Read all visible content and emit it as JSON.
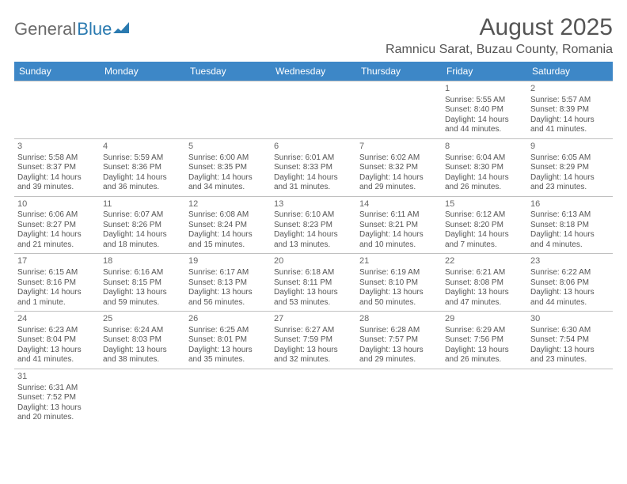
{
  "logo": {
    "general": "General",
    "blue": "Blue"
  },
  "title": "August 2025",
  "location": "Ramnicu Sarat, Buzau County, Romania",
  "day_headers": [
    "Sunday",
    "Monday",
    "Tuesday",
    "Wednesday",
    "Thursday",
    "Friday",
    "Saturday"
  ],
  "colors": {
    "header_bg": "#3d87c7",
    "header_text": "#ffffff",
    "text": "#555555",
    "border": "#c0c0c0",
    "logo_blue": "#2a7ab0"
  },
  "weeks": [
    [
      null,
      null,
      null,
      null,
      null,
      {
        "n": "1",
        "sr": "5:55 AM",
        "ss": "8:40 PM",
        "dl": "14 hours and 44 minutes."
      },
      {
        "n": "2",
        "sr": "5:57 AM",
        "ss": "8:39 PM",
        "dl": "14 hours and 41 minutes."
      }
    ],
    [
      {
        "n": "3",
        "sr": "5:58 AM",
        "ss": "8:37 PM",
        "dl": "14 hours and 39 minutes."
      },
      {
        "n": "4",
        "sr": "5:59 AM",
        "ss": "8:36 PM",
        "dl": "14 hours and 36 minutes."
      },
      {
        "n": "5",
        "sr": "6:00 AM",
        "ss": "8:35 PM",
        "dl": "14 hours and 34 minutes."
      },
      {
        "n": "6",
        "sr": "6:01 AM",
        "ss": "8:33 PM",
        "dl": "14 hours and 31 minutes."
      },
      {
        "n": "7",
        "sr": "6:02 AM",
        "ss": "8:32 PM",
        "dl": "14 hours and 29 minutes."
      },
      {
        "n": "8",
        "sr": "6:04 AM",
        "ss": "8:30 PM",
        "dl": "14 hours and 26 minutes."
      },
      {
        "n": "9",
        "sr": "6:05 AM",
        "ss": "8:29 PM",
        "dl": "14 hours and 23 minutes."
      }
    ],
    [
      {
        "n": "10",
        "sr": "6:06 AM",
        "ss": "8:27 PM",
        "dl": "14 hours and 21 minutes."
      },
      {
        "n": "11",
        "sr": "6:07 AM",
        "ss": "8:26 PM",
        "dl": "14 hours and 18 minutes."
      },
      {
        "n": "12",
        "sr": "6:08 AM",
        "ss": "8:24 PM",
        "dl": "14 hours and 15 minutes."
      },
      {
        "n": "13",
        "sr": "6:10 AM",
        "ss": "8:23 PM",
        "dl": "14 hours and 13 minutes."
      },
      {
        "n": "14",
        "sr": "6:11 AM",
        "ss": "8:21 PM",
        "dl": "14 hours and 10 minutes."
      },
      {
        "n": "15",
        "sr": "6:12 AM",
        "ss": "8:20 PM",
        "dl": "14 hours and 7 minutes."
      },
      {
        "n": "16",
        "sr": "6:13 AM",
        "ss": "8:18 PM",
        "dl": "14 hours and 4 minutes."
      }
    ],
    [
      {
        "n": "17",
        "sr": "6:15 AM",
        "ss": "8:16 PM",
        "dl": "14 hours and 1 minute."
      },
      {
        "n": "18",
        "sr": "6:16 AM",
        "ss": "8:15 PM",
        "dl": "13 hours and 59 minutes."
      },
      {
        "n": "19",
        "sr": "6:17 AM",
        "ss": "8:13 PM",
        "dl": "13 hours and 56 minutes."
      },
      {
        "n": "20",
        "sr": "6:18 AM",
        "ss": "8:11 PM",
        "dl": "13 hours and 53 minutes."
      },
      {
        "n": "21",
        "sr": "6:19 AM",
        "ss": "8:10 PM",
        "dl": "13 hours and 50 minutes."
      },
      {
        "n": "22",
        "sr": "6:21 AM",
        "ss": "8:08 PM",
        "dl": "13 hours and 47 minutes."
      },
      {
        "n": "23",
        "sr": "6:22 AM",
        "ss": "8:06 PM",
        "dl": "13 hours and 44 minutes."
      }
    ],
    [
      {
        "n": "24",
        "sr": "6:23 AM",
        "ss": "8:04 PM",
        "dl": "13 hours and 41 minutes."
      },
      {
        "n": "25",
        "sr": "6:24 AM",
        "ss": "8:03 PM",
        "dl": "13 hours and 38 minutes."
      },
      {
        "n": "26",
        "sr": "6:25 AM",
        "ss": "8:01 PM",
        "dl": "13 hours and 35 minutes."
      },
      {
        "n": "27",
        "sr": "6:27 AM",
        "ss": "7:59 PM",
        "dl": "13 hours and 32 minutes."
      },
      {
        "n": "28",
        "sr": "6:28 AM",
        "ss": "7:57 PM",
        "dl": "13 hours and 29 minutes."
      },
      {
        "n": "29",
        "sr": "6:29 AM",
        "ss": "7:56 PM",
        "dl": "13 hours and 26 minutes."
      },
      {
        "n": "30",
        "sr": "6:30 AM",
        "ss": "7:54 PM",
        "dl": "13 hours and 23 minutes."
      }
    ],
    [
      {
        "n": "31",
        "sr": "6:31 AM",
        "ss": "7:52 PM",
        "dl": "13 hours and 20 minutes."
      },
      null,
      null,
      null,
      null,
      null,
      null
    ]
  ],
  "labels": {
    "sunrise": "Sunrise:",
    "sunset": "Sunset:",
    "daylight": "Daylight:"
  }
}
